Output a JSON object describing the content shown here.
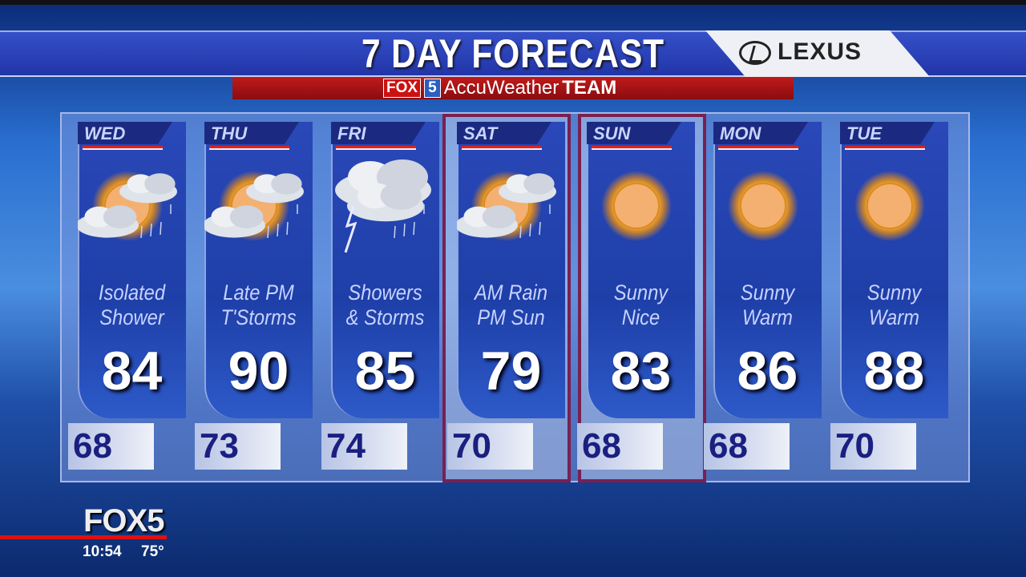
{
  "header": {
    "title": "7 DAY FORECAST",
    "sponsor": "LEXUS",
    "team_fox": "FOX",
    "team_five": "5",
    "team_accu": "AccuWeather",
    "team_word": "TEAM"
  },
  "days": [
    {
      "day": "WED",
      "condition_line1": "Isolated",
      "condition_line2": "Shower",
      "high": "84",
      "low": "68",
      "icon": "sun-cloud-rain-icon",
      "highlighted": false
    },
    {
      "day": "THU",
      "condition_line1": "Late PM",
      "condition_line2": "T'Storms",
      "high": "90",
      "low": "73",
      "icon": "sun-cloud-rain-icon",
      "highlighted": false
    },
    {
      "day": "FRI",
      "condition_line1": "Showers",
      "condition_line2": "& Storms",
      "high": "85",
      "low": "74",
      "icon": "thunderstorm-icon",
      "highlighted": false
    },
    {
      "day": "SAT",
      "condition_line1": "AM Rain",
      "condition_line2": "PM Sun",
      "high": "79",
      "low": "70",
      "icon": "sun-cloud-rain-icon",
      "highlighted": true
    },
    {
      "day": "SUN",
      "condition_line1": "Sunny",
      "condition_line2": "Nice",
      "high": "83",
      "low": "68",
      "icon": "sun-icon",
      "highlighted": true
    },
    {
      "day": "MON",
      "condition_line1": "Sunny",
      "condition_line2": "Warm",
      "high": "86",
      "low": "68",
      "icon": "sun-icon",
      "highlighted": false
    },
    {
      "day": "TUE",
      "condition_line1": "Sunny",
      "condition_line2": "Warm",
      "high": "88",
      "low": "70",
      "icon": "sun-icon",
      "highlighted": false
    }
  ],
  "bug": {
    "station": "FOX5",
    "time": "10:54",
    "temperature": "75°"
  },
  "colors": {
    "title_bar": "#2a3fb8",
    "accent_red": "#c11a1a",
    "highlight_frame": "#7a2050",
    "low_temp_text": "#1a1f80"
  }
}
